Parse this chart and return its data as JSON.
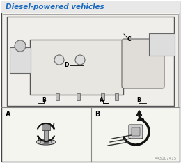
{
  "title": "Diesel-powered vehicles",
  "title_color": "#1a6bbf",
  "bg_color": "#ffffff",
  "border_color": "#333333",
  "text_color": "#000000",
  "label_A": "A",
  "label_B": "B",
  "label_C": "C",
  "label_D": "D",
  "bottom_label_A": "A",
  "bottom_label_B": "B",
  "watermark": "AA3007415",
  "figsize": [
    2.6,
    2.34
  ],
  "dpi": 100
}
